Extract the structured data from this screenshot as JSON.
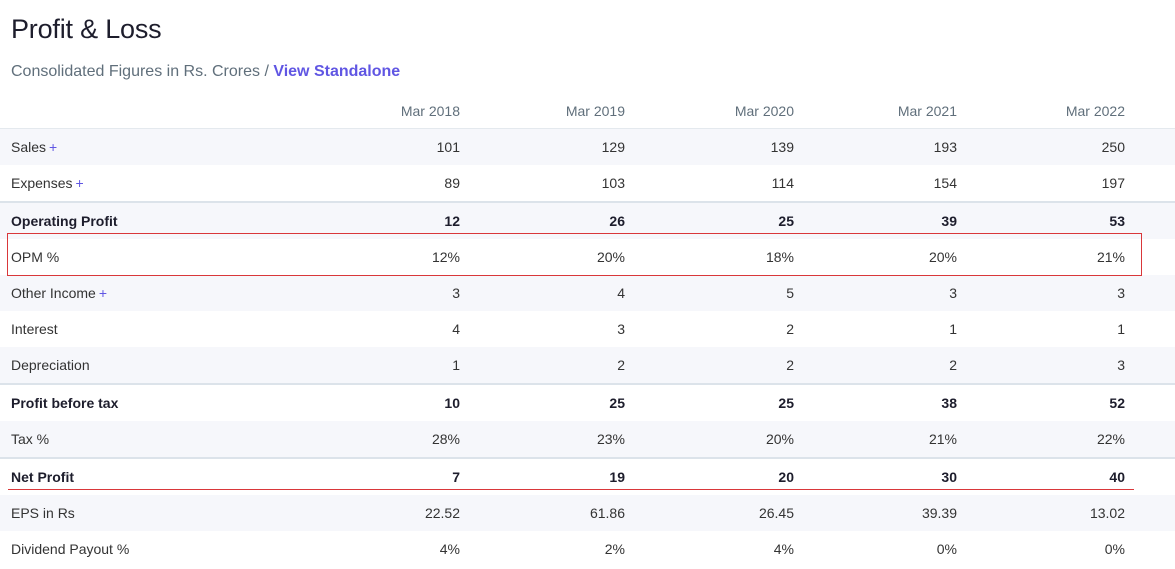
{
  "header": {
    "title": "Profit & Loss",
    "subtitle_text": "Consolidated Figures in Rs. Crores / ",
    "view_link": "View Standalone"
  },
  "table": {
    "columns": [
      "Mar 2018",
      "Mar 2019",
      "Mar 2020",
      "Mar 2021",
      "Mar 2022"
    ],
    "rows": [
      {
        "label": "Sales",
        "plus": "+",
        "values": [
          "101",
          "129",
          "139",
          "193",
          "250"
        ]
      },
      {
        "label": "Expenses",
        "plus": "+",
        "values": [
          "89",
          "103",
          "114",
          "154",
          "197"
        ]
      },
      {
        "label": "Operating Profit",
        "plus": "",
        "values": [
          "12",
          "26",
          "25",
          "39",
          "53"
        ]
      },
      {
        "label": "OPM %",
        "plus": "",
        "values": [
          "12%",
          "20%",
          "18%",
          "20%",
          "21%"
        ]
      },
      {
        "label": "Other Income",
        "plus": "+",
        "values": [
          "3",
          "4",
          "5",
          "3",
          "3"
        ]
      },
      {
        "label": "Interest",
        "plus": "",
        "values": [
          "4",
          "3",
          "2",
          "1",
          "1"
        ]
      },
      {
        "label": "Depreciation",
        "plus": "",
        "values": [
          "1",
          "2",
          "2",
          "2",
          "3"
        ]
      },
      {
        "label": "Profit before tax",
        "plus": "",
        "values": [
          "10",
          "25",
          "25",
          "38",
          "52"
        ]
      },
      {
        "label": "Tax %",
        "plus": "",
        "values": [
          "28%",
          "23%",
          "20%",
          "21%",
          "22%"
        ]
      },
      {
        "label": "Net Profit",
        "plus": "",
        "values": [
          "7",
          "19",
          "20",
          "30",
          "40"
        ]
      },
      {
        "label": "EPS in Rs",
        "plus": "",
        "values": [
          "22.52",
          "61.86",
          "26.45",
          "39.39",
          "13.02"
        ]
      },
      {
        "label": "Dividend Payout %",
        "plus": "",
        "values": [
          "4%",
          "2%",
          "4%",
          "0%",
          "0%"
        ]
      }
    ]
  },
  "annotations": {
    "highlight_color": "#d9373a"
  }
}
